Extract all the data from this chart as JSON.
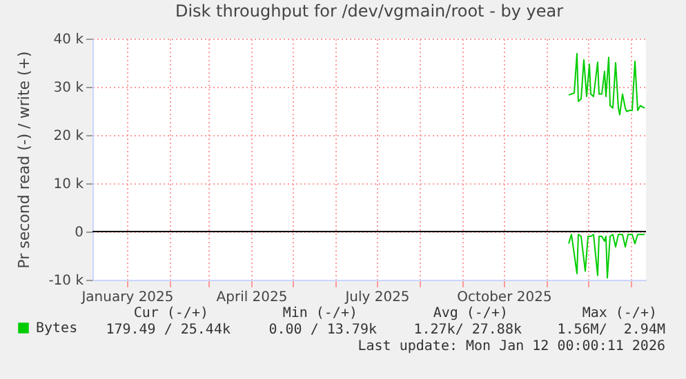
{
  "chart_data": {
    "type": "line",
    "title": "Disk throughput for /dev/vgmain/root - by year",
    "ylabel": "Pr second read (-) / write (+)",
    "xlim": [
      "2024-12-07",
      "2026-01-12"
    ],
    "xticks": [
      {
        "value": "2025-01-01",
        "label": "January 2025"
      },
      {
        "value": "2025-02-01",
        "label": null
      },
      {
        "value": "2025-03-01",
        "label": null
      },
      {
        "value": "2025-04-01",
        "label": "April 2025"
      },
      {
        "value": "2025-05-01",
        "label": null
      },
      {
        "value": "2025-06-01",
        "label": null
      },
      {
        "value": "2025-07-01",
        "label": "July 2025"
      },
      {
        "value": "2025-08-01",
        "label": null
      },
      {
        "value": "2025-09-01",
        "label": null
      },
      {
        "value": "2025-10-01",
        "label": "October 2025"
      },
      {
        "value": "2025-11-01",
        "label": null
      },
      {
        "value": "2025-12-01",
        "label": null
      },
      {
        "value": "2026-01-01",
        "label": null
      }
    ],
    "ylim": [
      -10000,
      40000
    ],
    "yticks": [
      {
        "value": -10000,
        "label": "-10 k"
      },
      0,
      {
        "value": 10000,
        "label": "10 k"
      },
      {
        "value": 20000,
        "label": "20 k"
      },
      {
        "value": 30000,
        "label": "30 k"
      },
      {
        "value": 40000,
        "label": "40 k"
      }
    ],
    "grid": true,
    "legend": "bottom left",
    "ref_lines": [
      {
        "axis": "y",
        "value": 0,
        "color": "#000000"
      }
    ],
    "series": [
      {
        "name": "Bytes",
        "color": "#00cc00",
        "x": [
          "2025-11-17",
          "2025-11-21",
          "2025-11-23",
          "2025-11-24",
          "2025-11-26",
          "2025-11-28",
          "2025-11-30",
          "2025-12-02",
          "2025-12-03",
          "2025-12-05",
          "2025-12-08",
          "2025-12-09",
          "2025-12-11",
          "2025-12-13",
          "2025-12-14",
          "2025-12-16",
          "2025-12-17",
          "2025-12-19",
          "2025-12-21",
          "2025-12-23",
          "2025-12-24",
          "2025-12-26",
          "2025-12-28",
          "2025-12-29",
          "2025-12-31",
          "2026-01-02",
          "2026-01-04",
          "2026-01-06",
          "2026-01-08",
          "2026-01-11"
        ],
        "values": [
          28300,
          28700,
          36900,
          27000,
          27500,
          35600,
          28000,
          34700,
          28500,
          28000,
          35100,
          28500,
          28500,
          33200,
          28000,
          36100,
          26100,
          25600,
          35000,
          25600,
          24200,
          28500,
          25600,
          24900,
          25100,
          25100,
          35300,
          25100,
          26100,
          25600
        ]
      },
      {
        "color": "#00cc00",
        "x": [
          "2025-11-17",
          "2025-11-19",
          "2025-11-23",
          "2025-11-24",
          "2025-11-26",
          "2025-11-29",
          "2025-12-01",
          "2025-12-03",
          "2025-12-05",
          "2025-12-08",
          "2025-12-09",
          "2025-12-11",
          "2025-12-13",
          "2025-12-14",
          "2025-12-15",
          "2025-12-17",
          "2025-12-19",
          "2025-12-21",
          "2025-12-23",
          "2025-12-26",
          "2025-12-28",
          "2025-12-30",
          "2026-01-02",
          "2026-01-04",
          "2026-01-06",
          "2026-01-11"
        ],
        "values": [
          -2500,
          -600,
          -8700,
          -600,
          -1000,
          -8200,
          -1000,
          -1000,
          -600,
          -9100,
          -1000,
          -1000,
          -2000,
          -1000,
          -9600,
          -1000,
          -600,
          -3200,
          -600,
          -600,
          -3200,
          -600,
          -600,
          -2500,
          -600,
          -600
        ]
      }
    ],
    "annotations": [
      "Cur (-/+)",
      "Min (-/+)",
      "Avg (-/+)",
      "Max (-/+)",
      "179.49 / 25.44k",
      "0.00 / 13.79k",
      "1.27k/ 27.88k",
      "1.56M/  2.94M",
      "Last update: Mon Jan 12 00:00:11 2026"
    ]
  }
}
